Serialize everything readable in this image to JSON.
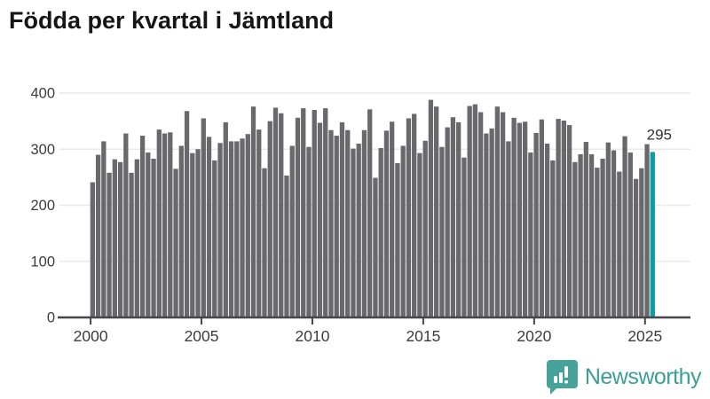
{
  "title": "Födda per kvartal i Jämtland",
  "logo": {
    "text": "Newsworthy"
  },
  "colors": {
    "bar": "#69696d",
    "accent": "#0aa0a2",
    "grid": "#e9e9e9",
    "axis": "#47474b",
    "tick_text": "#3c3c3c",
    "title_text": "#161616",
    "annotation_text": "#333333",
    "logo_teal": "#47a29a"
  },
  "chart_data": {
    "type": "bar",
    "title": "Födda per kvartal i Jämtland",
    "period_unit": "quarter",
    "start_period": "2000-Q1",
    "end_period": "2025-Q2",
    "values": [
      241,
      290,
      314,
      258,
      282,
      277,
      328,
      258,
      282,
      324,
      294,
      283,
      335,
      328,
      330,
      265,
      306,
      368,
      293,
      300,
      355,
      322,
      280,
      311,
      348,
      314,
      314,
      319,
      327,
      376,
      335,
      266,
      350,
      374,
      364,
      253,
      306,
      356,
      373,
      304,
      370,
      347,
      373,
      334,
      324,
      348,
      334,
      301,
      310,
      334,
      371,
      249,
      302,
      333,
      349,
      275,
      306,
      355,
      363,
      293,
      315,
      388,
      376,
      304,
      339,
      357,
      348,
      285,
      377,
      380,
      366,
      328,
      337,
      376,
      366,
      314,
      356,
      347,
      349,
      294,
      329,
      353,
      310,
      280,
      354,
      351,
      343,
      277,
      291,
      313,
      291,
      267,
      283,
      312,
      298,
      260,
      323,
      294,
      247,
      266,
      309,
      295
    ],
    "highlight": {
      "index": 101,
      "label": "295",
      "period": "2025-Q2"
    },
    "ylim": [
      0,
      400
    ],
    "y_ticks": [
      0,
      100,
      200,
      300,
      400
    ],
    "x_tick_years": [
      2000,
      2005,
      2010,
      2015,
      2020,
      2025
    ],
    "grid": true,
    "legend": "none"
  }
}
